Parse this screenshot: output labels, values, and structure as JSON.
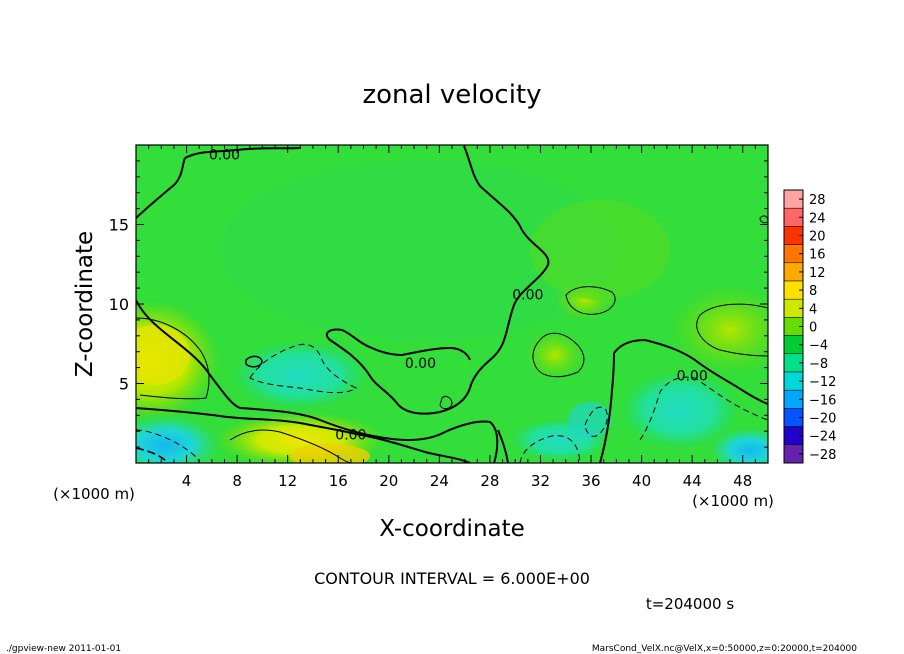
{
  "chart_data": {
    "type": "heatmap",
    "title": "zonal velocity",
    "xlabel": "X-coordinate",
    "ylabel": "Z-coordinate",
    "x_unit_label": "(×1000 m)",
    "y_unit_label": "(×1000 m)",
    "xlim": [
      0,
      50
    ],
    "ylim": [
      0,
      20
    ],
    "x_ticks": [
      4,
      8,
      12,
      16,
      20,
      24,
      28,
      32,
      36,
      40,
      44,
      48
    ],
    "y_ticks": [
      5,
      10,
      15
    ],
    "colorbar": {
      "levels": [
        28,
        24,
        20,
        16,
        12,
        8,
        4,
        0,
        -4,
        -8,
        -12,
        -16,
        -20,
        -24,
        -28
      ],
      "colors": [
        "#ffa3a3",
        "#ff6666",
        "#ff3300",
        "#ff7700",
        "#ffaa00",
        "#ffe000",
        "#cfe800",
        "#66dd00",
        "#00cc33",
        "#00e08a",
        "#00d8d8",
        "#00a8ff",
        "#0055ff",
        "#2200cc",
        "#6622aa"
      ]
    },
    "contour_labels": [
      {
        "text": "0.00",
        "x": 7,
        "z": 19.4
      },
      {
        "text": "0.00",
        "x": 31,
        "z": 10.6
      },
      {
        "text": "0.00",
        "x": 22.5,
        "z": 6.3
      },
      {
        "text": "0.00",
        "x": 17,
        "z": 1.8
      },
      {
        "text": "0.00",
        "x": 44,
        "z": 5.5
      }
    ],
    "contour_interval_text": "CONTOUR INTERVAL = 6.000E+00",
    "time_text": "t=204000 s"
  },
  "footer": {
    "left": "./gpview-new  2011-01-01",
    "right": "MarsCond_VelX.nc@VelX,x=0:50000,z=0:20000,t=204000"
  }
}
